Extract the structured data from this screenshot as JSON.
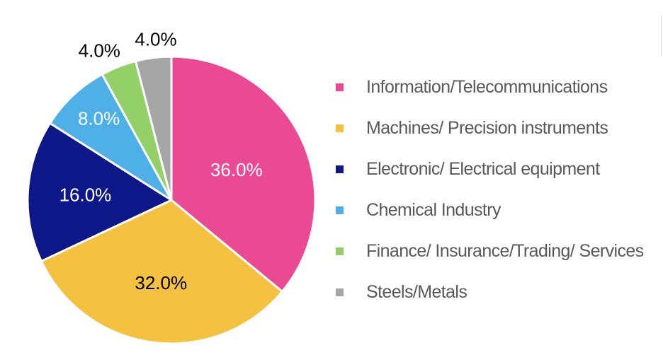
{
  "chart_data": {
    "type": "pie",
    "title": "",
    "categories": [
      "Information/Telecommunications",
      "Machines/ Precision instruments",
      "Electronic/ Electrical equipment",
      "Chemical Industry",
      "Finance/ Insurance/Trading/ Services",
      "Steels/Metals"
    ],
    "values": [
      36.0,
      32.0,
      16.0,
      8.0,
      4.0,
      4.0
    ],
    "labels": [
      "36.0%",
      "32.0%",
      "16.0%",
      "8.0%",
      "4.0%",
      "4.0%"
    ],
    "colors": [
      "#ea4a93",
      "#f4c141",
      "#0d1787",
      "#4fb0e8",
      "#93d168",
      "#a6a6a6"
    ],
    "label_colors": [
      "#ffffff",
      "#000000",
      "#ffffff",
      "#ffffff",
      "#000000",
      "#000000"
    ],
    "start_angle": "12 o'clock",
    "direction": "clockwise",
    "legend_position": "right"
  }
}
